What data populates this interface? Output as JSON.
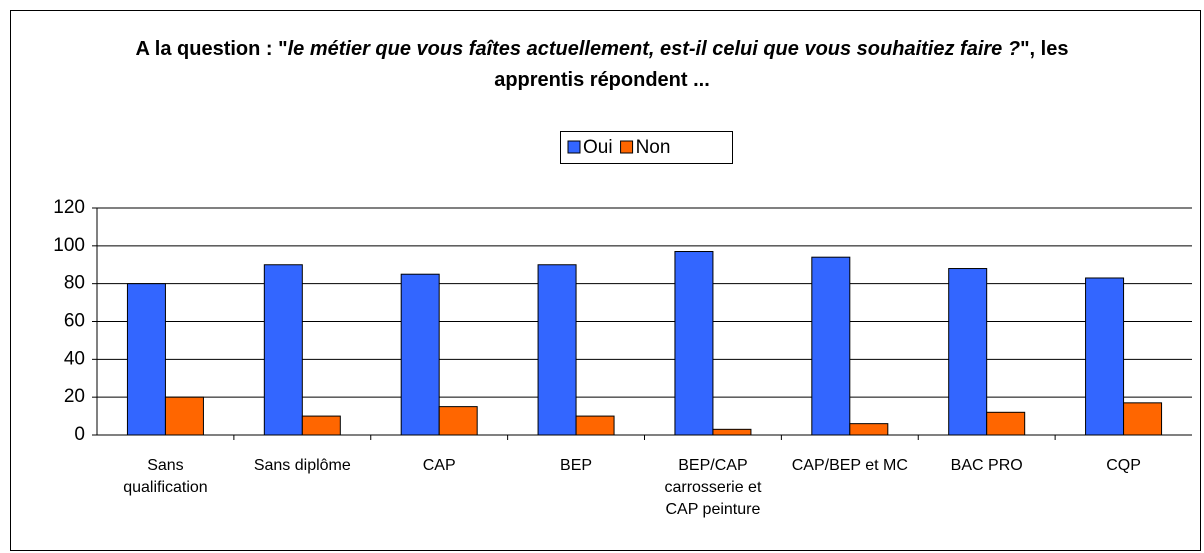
{
  "chart_data": {
    "type": "bar",
    "title": [
      "A la question : \"",
      "le métier que vous faîtes actuellement, est-il celui que vous souhaitiez faire ?",
      "\", les apprentis répondent ..."
    ],
    "categories": [
      "Sans qualification",
      "Sans diplôme",
      "CAP",
      "BEP",
      "BEP/CAP carrosserie et CAP peinture",
      "CAP/BEP et MC",
      "BAC PRO",
      "CQP"
    ],
    "series": [
      {
        "name": "Oui",
        "color": "#3366ff",
        "values": [
          80,
          90,
          85,
          90,
          97,
          94,
          88,
          83
        ]
      },
      {
        "name": "Non",
        "color": "#ff6600",
        "values": [
          20,
          10,
          15,
          10,
          3,
          6,
          12,
          17
        ]
      }
    ],
    "ylim": [
      0,
      120
    ],
    "yticks": [
      0,
      20,
      40,
      60,
      80,
      100,
      120
    ],
    "grid": true,
    "legend": "top"
  }
}
